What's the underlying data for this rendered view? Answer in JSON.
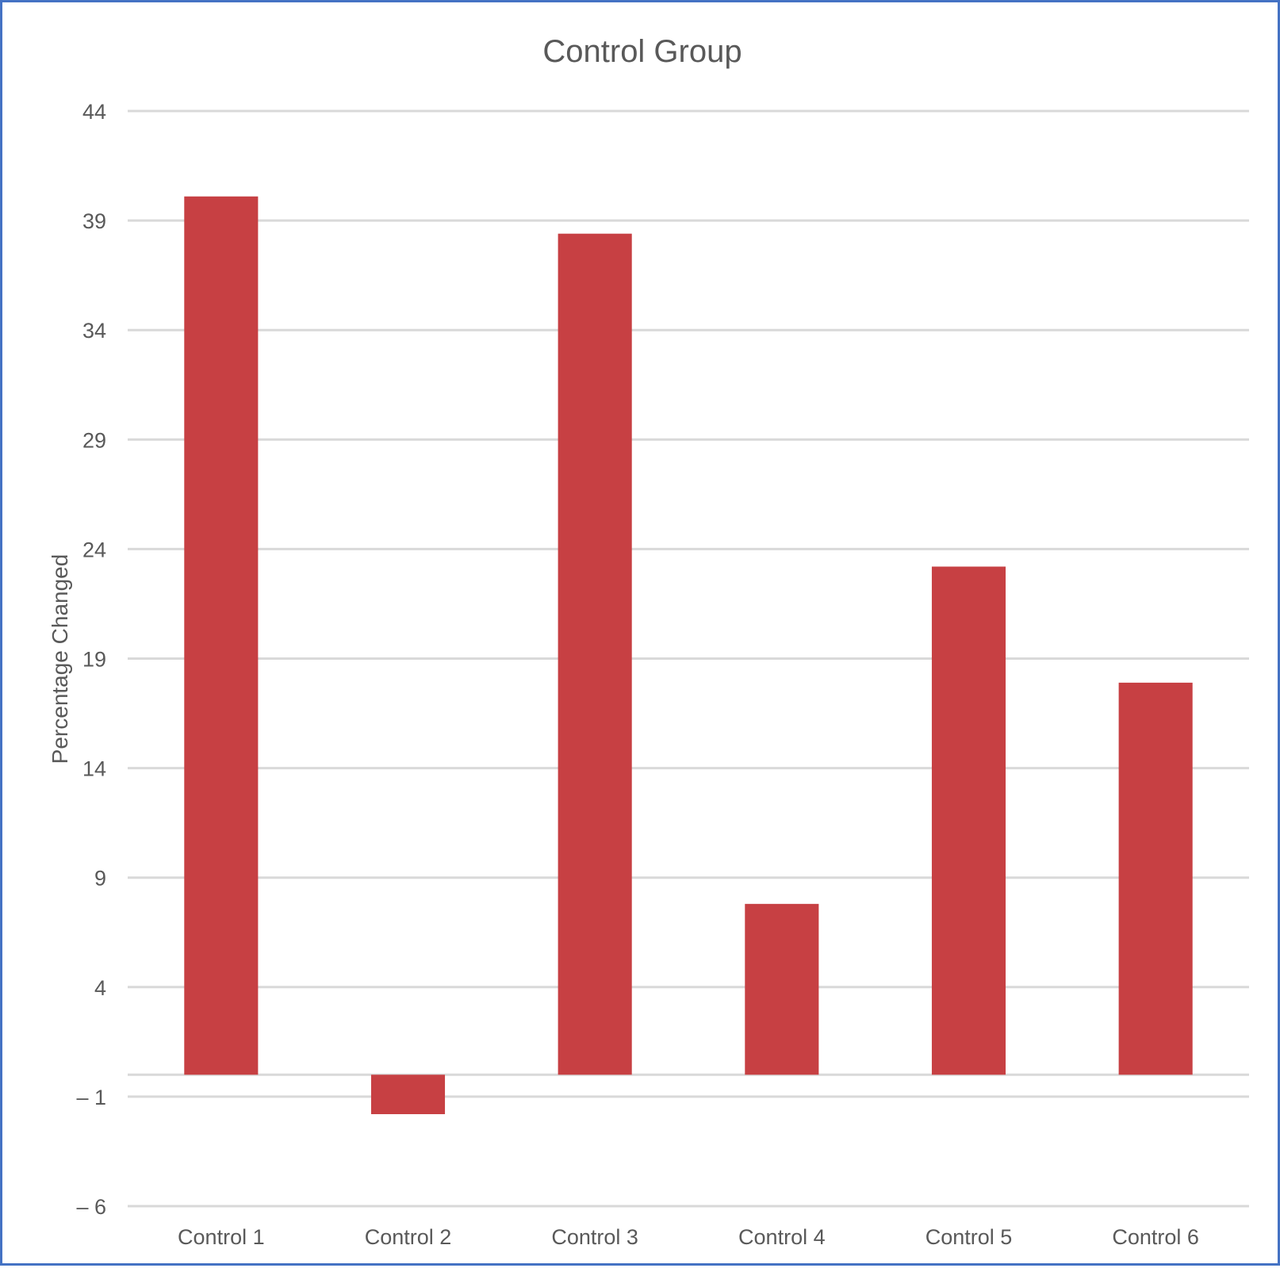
{
  "chart_data": {
    "type": "bar",
    "title": "Control Group",
    "xlabel": "",
    "ylabel": "Percentage Changed",
    "categories": [
      "Control 1",
      "Control 2",
      "Control 3",
      "Control 4",
      "Control 5",
      "Control 6"
    ],
    "values": [
      40.1,
      -1.8,
      38.4,
      7.8,
      23.2,
      17.9
    ],
    "ylim": [
      -6,
      44
    ],
    "yticks": [
      44,
      39,
      34,
      29,
      24,
      19,
      14,
      9,
      4,
      -1,
      -6
    ],
    "ytick_labels": [
      "44",
      "39",
      "34",
      "29",
      "24",
      "19",
      "14",
      "9",
      "4",
      "– 1",
      "– 6"
    ],
    "grid": true,
    "legend": "none",
    "bar_color": "#c74043",
    "grid_color": "#d9d9d9",
    "frame_color": "#4472c4"
  }
}
